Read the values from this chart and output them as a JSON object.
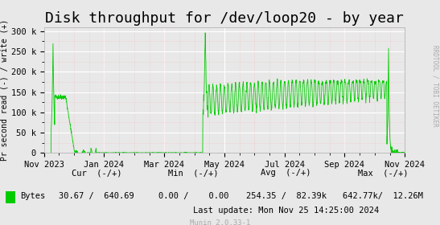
{
  "title": "Disk throughput for /dev/loop20 - by year",
  "ylabel": "Pr second read (-) / write (+)",
  "background_color": "#e8e8e8",
  "plot_bg_color": "#e8e8e8",
  "line_color": "#00cc00",
  "grid_color_major": "#ffffff",
  "grid_color_minor": "#f5c0c0",
  "yticks": [
    0,
    50000,
    100000,
    150000,
    200000,
    250000,
    300000
  ],
  "ytick_labels": [
    "0",
    "50 k",
    "100 k",
    "150 k",
    "200 k",
    "250 k",
    "300 k"
  ],
  "ylim": [
    0,
    310000
  ],
  "xtick_positions": [
    0.0,
    0.1667,
    0.3333,
    0.5,
    0.6667,
    0.8333,
    1.0
  ],
  "xtick_labels": [
    "Nov 2023",
    "Jan 2024",
    "Mar 2024",
    "May 2024",
    "Jul 2024",
    "Sep 2024",
    "Nov 2024"
  ],
  "legend_label": "Bytes",
  "legend_color": "#00cc00",
  "footer_cur": "Cur  (-/+)",
  "footer_min": "Min  (-/+)",
  "footer_avg": "Avg  (-/+)",
  "footer_max": "Max  (-/+)",
  "footer_bytes": "Bytes",
  "footer_cur_val": "30.67 /  640.69",
  "footer_min_val": "0.00 /    0.00",
  "footer_avg_val": "254.35 /  82.39k",
  "footer_max_val": "642.77k/  12.26M",
  "footer_lastupdate": "Last update: Mon Nov 25 14:25:00 2024",
  "munin_version": "Munin 2.0.33-1",
  "right_label": "RRDTOOL / TOBI OETIKER",
  "title_fontsize": 13,
  "axis_fontsize": 7.5,
  "footer_fontsize": 7.5
}
